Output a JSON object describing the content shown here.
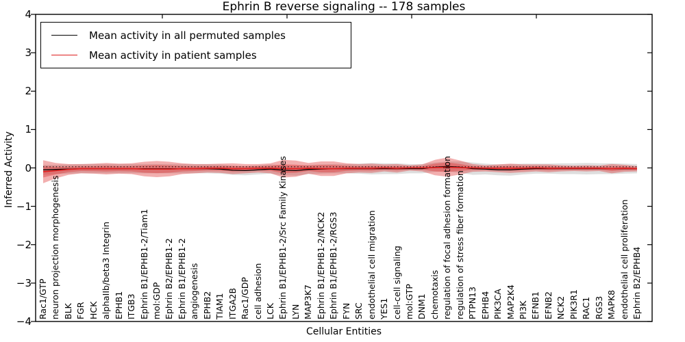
{
  "title": "Ephrin B reverse signaling -- 178 samples",
  "axes": {
    "xlabel": "Cellular Entities",
    "ylabel": "Inferred Activity",
    "ytick_labels": [
      "4",
      "3",
      "2",
      "1",
      "0",
      "−1",
      "−2",
      "−3",
      "−4"
    ]
  },
  "legend": {
    "items": [
      {
        "label": "Mean activity in all permuted samples",
        "color": "#000000"
      },
      {
        "label": "Mean activity in patient samples",
        "color": "#dd1c1c"
      }
    ]
  },
  "chart_data": {
    "type": "area",
    "title": "Ephrin B reverse signaling -- 178 samples",
    "xlabel": "Cellular Entities",
    "ylabel": "Inferred Activity",
    "ylim": [
      -4,
      4
    ],
    "yticks": [
      4,
      3,
      2,
      1,
      0,
      -1,
      -2,
      -3,
      -4
    ],
    "grid": false,
    "legend_position": "upper left",
    "categories": [
      "Rac1/GTP",
      "neuron projection morphogenesis",
      "BLK",
      "FGR",
      "HCK",
      "alphaIIb/beta3 Integrin",
      "EPHB1",
      "ITGB3",
      "Ephrin B1/EPHB1-2/Tiam1",
      "mol:GDP",
      "Ephrin B2/EPHB1-2",
      "Ephrin B1/EPHB1-2",
      "angiogenesis",
      "EPHB2",
      "TIAM1",
      "ITGA2B",
      "Rac1/GDP",
      "cell adhesion",
      "LCK",
      "Ephrin B1/EPHB1-2/Src Family Kinases",
      "LYN",
      "MAP3K7",
      "Ephrin B1/EPHB1-2/NCK2",
      "Ephrin B1/EPHB1-2/RGS3",
      "FYN",
      "SRC",
      "endothelial cell migration",
      "YES1",
      "cell-cell signaling",
      "mol:GTP",
      "DNM1",
      "chemotaxis",
      "regulation of focal adhesion formation",
      "regulation of stress fiber formation",
      "PTPN13",
      "EPHB4",
      "PIK3CA",
      "MAP2K4",
      "PI3K",
      "EFNB1",
      "EFNB2",
      "NCK2",
      "PIK3R1",
      "RAC1",
      "RGS3",
      "MAPK8",
      "endothelial cell proliferation",
      "Ephrin B2/EPHB4"
    ],
    "series": [
      {
        "name": "Mean activity in all permuted samples",
        "type": "line",
        "color": "#000000",
        "values": [
          -0.05,
          -0.04,
          -0.03,
          -0.02,
          -0.02,
          -0.02,
          -0.02,
          -0.02,
          -0.02,
          -0.02,
          -0.02,
          -0.02,
          -0.02,
          -0.02,
          -0.03,
          -0.06,
          -0.07,
          -0.05,
          -0.03,
          -0.06,
          -0.07,
          -0.04,
          -0.03,
          -0.02,
          -0.02,
          -0.02,
          -0.02,
          -0.02,
          -0.02,
          -0.02,
          -0.02,
          0.02,
          0.04,
          0.02,
          -0.02,
          -0.03,
          -0.05,
          -0.05,
          -0.03,
          -0.02,
          -0.02,
          -0.02,
          -0.02,
          -0.02,
          -0.02,
          -0.02,
          -0.02,
          -0.02
        ]
      },
      {
        "name": "Mean activity in patient samples",
        "type": "line",
        "color": "#dd1c1c",
        "values": [
          -0.1,
          -0.07,
          -0.04,
          -0.02,
          -0.02,
          -0.02,
          -0.02,
          -0.02,
          -0.03,
          -0.03,
          -0.03,
          -0.02,
          -0.02,
          -0.01,
          -0.01,
          -0.02,
          -0.02,
          -0.01,
          -0.01,
          -0.02,
          -0.02,
          -0.01,
          -0.02,
          -0.02,
          -0.01,
          -0.01,
          -0.01,
          0.0,
          -0.01,
          0.0,
          0.0,
          0.01,
          0.02,
          0.01,
          0.0,
          -0.01,
          -0.01,
          -0.01,
          -0.01,
          0.0,
          -0.01,
          -0.01,
          -0.01,
          -0.01,
          -0.01,
          -0.02,
          -0.01,
          -0.02
        ]
      }
    ],
    "bands": [
      {
        "name": "permuted-envelope",
        "color": "rgba(0,0,0,0.13)",
        "center_series": 0,
        "scale": 1,
        "halfwidths": [
          0.13,
          0.12,
          0.12,
          0.12,
          0.12,
          0.12,
          0.12,
          0.12,
          0.12,
          0.12,
          0.12,
          0.12,
          0.12,
          0.12,
          0.12,
          0.12,
          0.12,
          0.12,
          0.12,
          0.13,
          0.13,
          0.12,
          0.12,
          0.12,
          0.12,
          0.13,
          0.15,
          0.14,
          0.14,
          0.12,
          0.12,
          0.12,
          0.13,
          0.15,
          0.16,
          0.14,
          0.14,
          0.15,
          0.14,
          0.13,
          0.13,
          0.14,
          0.14,
          0.15,
          0.14,
          0.14,
          0.13,
          0.12
        ]
      },
      {
        "name": "patient-envelope-outer",
        "color": "rgba(222,45,45,0.38)",
        "center_series": 1,
        "scale": 1,
        "halfwidths": [
          0.3,
          0.2,
          0.14,
          0.12,
          0.13,
          0.15,
          0.13,
          0.14,
          0.19,
          0.21,
          0.19,
          0.14,
          0.12,
          0.11,
          0.12,
          0.14,
          0.12,
          0.11,
          0.13,
          0.23,
          0.21,
          0.14,
          0.19,
          0.19,
          0.13,
          0.11,
          0.12,
          0.09,
          0.11,
          0.07,
          0.09,
          0.2,
          0.25,
          0.18,
          0.1,
          0.08,
          0.1,
          0.12,
          0.1,
          0.09,
          0.1,
          0.08,
          0.07,
          0.08,
          0.07,
          0.12,
          0.09,
          0.07
        ]
      },
      {
        "name": "patient-envelope-inner",
        "color": "rgba(222,45,45,0.38)",
        "center_series": 1,
        "scale": 0.5,
        "halfwidths": [
          0.3,
          0.2,
          0.14,
          0.12,
          0.13,
          0.15,
          0.13,
          0.14,
          0.19,
          0.21,
          0.19,
          0.14,
          0.12,
          0.11,
          0.12,
          0.14,
          0.12,
          0.11,
          0.13,
          0.23,
          0.21,
          0.14,
          0.19,
          0.19,
          0.13,
          0.11,
          0.12,
          0.09,
          0.11,
          0.07,
          0.09,
          0.2,
          0.25,
          0.18,
          0.1,
          0.08,
          0.1,
          0.12,
          0.1,
          0.09,
          0.1,
          0.08,
          0.07,
          0.08,
          0.07,
          0.12,
          0.09,
          0.07
        ]
      }
    ],
    "reference_line": {
      "y": 0.03,
      "style": "dotted",
      "color": "#000000"
    }
  }
}
